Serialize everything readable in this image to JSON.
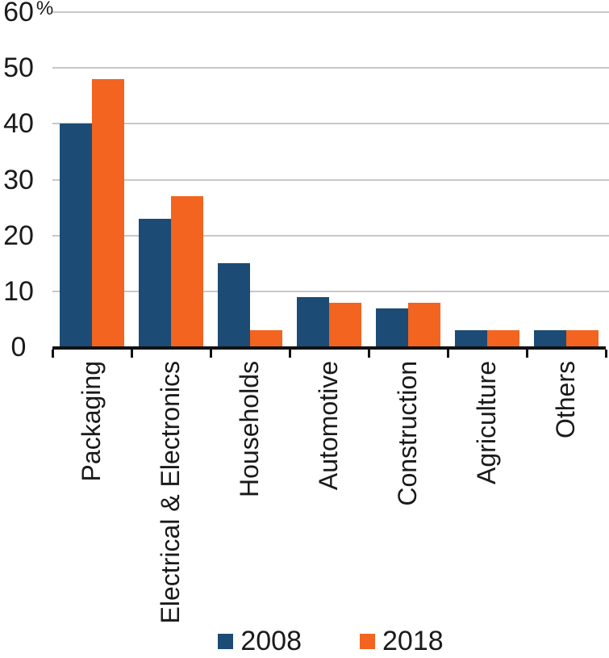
{
  "chart_data": {
    "type": "bar",
    "title": "",
    "categories": [
      "Packaging",
      "Electrical & Electronics",
      "Households",
      "Automotive",
      "Construction",
      "Agriculture",
      "Others"
    ],
    "series": [
      {
        "name": "2008",
        "color": "#1C4B75",
        "values": [
          40,
          23,
          15,
          9,
          7,
          3,
          3
        ]
      },
      {
        "name": "2018",
        "color": "#F2641F",
        "values": [
          48,
          27,
          3,
          8,
          8,
          3,
          3
        ]
      }
    ],
    "y_axis": {
      "min": 0,
      "max": 60,
      "step": 10,
      "unit_suffix": "%",
      "tick_labels": [
        "0",
        "10",
        "20",
        "30",
        "40",
        "50",
        "60"
      ]
    },
    "x_axis": {
      "label": ""
    },
    "grid": true,
    "legend": {
      "position": "bottom"
    }
  },
  "colors": {
    "grid": "#c8c8c8",
    "axis": "#121212",
    "text": "#1a1a1a",
    "background": "#ffffff",
    "series_2008": "#1C4B75",
    "series_2018": "#F2641F"
  }
}
